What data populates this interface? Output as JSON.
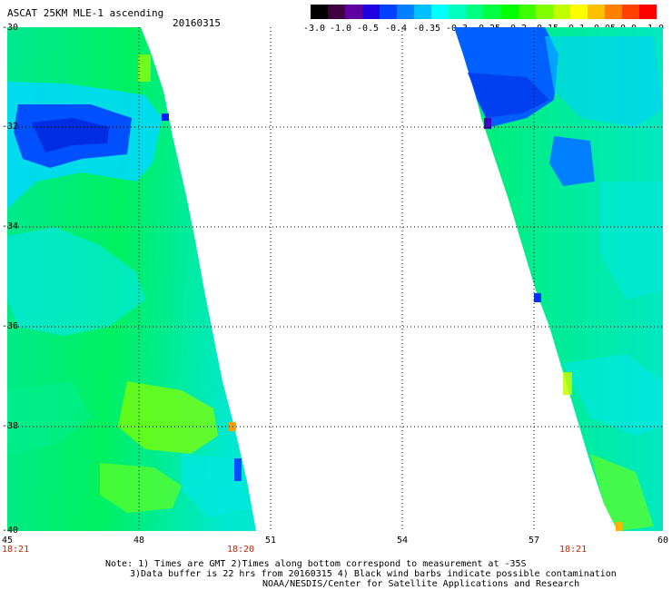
{
  "header": {
    "title": "ASCAT 25KM MLE-1 ascending",
    "date": "20160315"
  },
  "colorbar": {
    "labels": [
      "-3.0",
      "-1.0",
      "-0.5",
      "-0.4",
      "-0.35",
      "-0.3",
      "-0.25",
      "-0.2",
      "-0.15",
      "-0.1",
      "-0.05",
      "0.0",
      "1.0"
    ],
    "colors": [
      "#000000",
      "#400040",
      "#6000a0",
      "#2000e0",
      "#0040ff",
      "#0080ff",
      "#00c0ff",
      "#00ffff",
      "#00ffc0",
      "#00ff80",
      "#00ff40",
      "#00ff00",
      "#40ff00",
      "#80ff00",
      "#c0ff00",
      "#ffff00",
      "#ffc000",
      "#ff8000",
      "#ff4000",
      "#ff0000"
    ]
  },
  "map": {
    "lat_labels": [
      "-30",
      "-32",
      "-34",
      "-36",
      "-38",
      "-40"
    ],
    "lon_labels": [
      "45",
      "48",
      "51",
      "54",
      "57",
      "60"
    ],
    "pass_times": [
      "18:21",
      "18:20",
      "18:21"
    ]
  },
  "footer": {
    "note1": "Note: 1) Times are GMT 2)Times along bottom correspond to measurement at -35S",
    "note2": "3)Data buffer is 22 hrs from 20160315 4) Black wind barbs indicate possible contamination",
    "credit": "NOAA/NESDIS/Center for Satellite Applications and Research"
  }
}
